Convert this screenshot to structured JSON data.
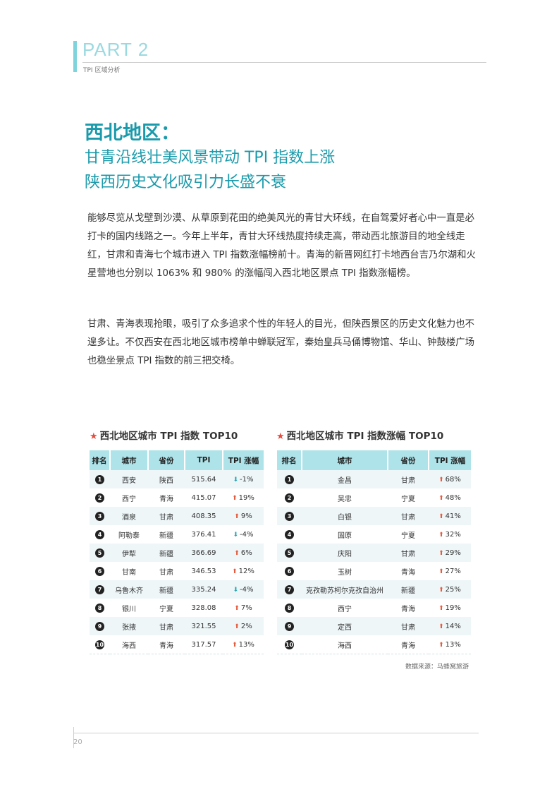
{
  "header": {
    "part": "PART 2",
    "subtitle": "TPI 区域分析"
  },
  "title": {
    "line1": "西北地区：",
    "line2": "甘青沿线壮美风景带动 TPI 指数上涨",
    "line3": "陕西历史文化吸引力长盛不衰"
  },
  "paragraphs": [
    "能够尽览从戈壁到沙漠、从草原到花田的绝美风光的青甘大环线，在自驾爱好者心中一直是必打卡的国内线路之一。今年上半年，青甘大环线热度持续走高，带动西北旅游目的地全线走红，甘肃和青海七个城市进入 TPI 指数涨幅榜前十。青海的新晋网红打卡地西台吉乃尔湖和火星营地也分别以 1063% 和 980% 的涨幅闯入西北地区景点 TPI 指数涨幅榜。",
    "甘肃、青海表现抢眼，吸引了众多追求个性的年轻人的目光，但陕西景区的历史文化魅力也不遑多让。不仅西安在西北地区城市榜单中蝉联冠军，秦始皇兵马俑博物馆、华山、钟鼓楼广场也稳坐景点 TPI 指数的前三把交椅。"
  ],
  "table1": {
    "title": "西北地区城市 TPI 指数 TOP10",
    "headers": [
      "排名",
      "城市",
      "省份",
      "TPI",
      "TPI 涨幅"
    ],
    "rows": [
      {
        "rank": "1",
        "city": "西安",
        "province": "陕西",
        "tpi": "515.64",
        "change": "-1%",
        "dir": "down"
      },
      {
        "rank": "2",
        "city": "西宁",
        "province": "青海",
        "tpi": "415.07",
        "change": "19%",
        "dir": "up"
      },
      {
        "rank": "3",
        "city": "酒泉",
        "province": "甘肃",
        "tpi": "408.35",
        "change": "9%",
        "dir": "up"
      },
      {
        "rank": "4",
        "city": "阿勒泰",
        "province": "新疆",
        "tpi": "376.41",
        "change": "-4%",
        "dir": "down"
      },
      {
        "rank": "5",
        "city": "伊犁",
        "province": "新疆",
        "tpi": "366.69",
        "change": "6%",
        "dir": "up"
      },
      {
        "rank": "6",
        "city": "甘南",
        "province": "甘肃",
        "tpi": "346.53",
        "change": "12%",
        "dir": "up"
      },
      {
        "rank": "7",
        "city": "乌鲁木齐",
        "province": "新疆",
        "tpi": "335.24",
        "change": "-4%",
        "dir": "down"
      },
      {
        "rank": "8",
        "city": "银川",
        "province": "宁夏",
        "tpi": "328.08",
        "change": "7%",
        "dir": "up"
      },
      {
        "rank": "9",
        "city": "张掖",
        "province": "甘肃",
        "tpi": "321.55",
        "change": "2%",
        "dir": "up"
      },
      {
        "rank": "10",
        "city": "海西",
        "province": "青海",
        "tpi": "317.57",
        "change": "13%",
        "dir": "up"
      }
    ]
  },
  "table2": {
    "title": "西北地区城市 TPI 指数涨幅 TOP10",
    "headers": [
      "排名",
      "城市",
      "省份",
      "TPI 涨幅"
    ],
    "rows": [
      {
        "rank": "1",
        "city": "金昌",
        "province": "甘肃",
        "change": "68%"
      },
      {
        "rank": "2",
        "city": "吴忠",
        "province": "宁夏",
        "change": "48%"
      },
      {
        "rank": "3",
        "city": "白银",
        "province": "甘肃",
        "change": "41%"
      },
      {
        "rank": "4",
        "city": "固原",
        "province": "宁夏",
        "change": "32%"
      },
      {
        "rank": "5",
        "city": "庆阳",
        "province": "甘肃",
        "change": "29%"
      },
      {
        "rank": "6",
        "city": "玉树",
        "province": "青海",
        "change": "27%"
      },
      {
        "rank": "7",
        "city": "克孜勒苏柯尔克孜自治州",
        "province": "新疆",
        "change": "25%"
      },
      {
        "rank": "8",
        "city": "西宁",
        "province": "青海",
        "change": "19%"
      },
      {
        "rank": "9",
        "city": "定西",
        "province": "甘肃",
        "change": "14%"
      },
      {
        "rank": "10",
        "city": "海西",
        "province": "青海",
        "change": "13%"
      }
    ]
  },
  "source": "数据来源：马蜂窝旅游",
  "page_number": "20",
  "icons": {
    "title_marker": "star-icon",
    "up": "arrow-up-icon",
    "down": "arrow-down-icon"
  },
  "colors": {
    "accent": "#1a9aab",
    "header_bg": "#aee3e9",
    "up": "#e85a3c",
    "down": "#2aa6b6",
    "star": "#e84a3c"
  }
}
